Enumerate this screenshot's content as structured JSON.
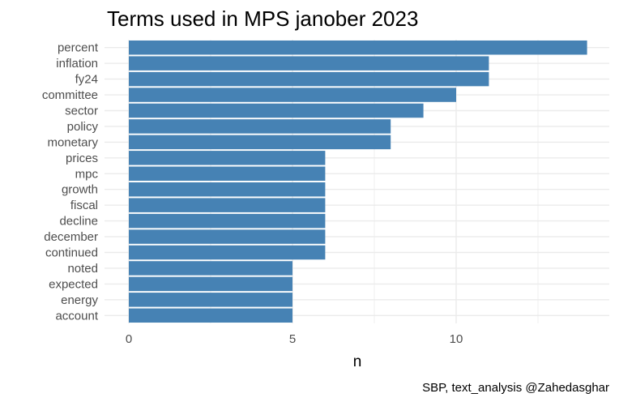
{
  "chart_data": {
    "type": "bar",
    "orientation": "horizontal",
    "title": "Terms used in MPS janober 2023",
    "xlabel": "n",
    "ylabel": "",
    "caption": "SBP, text_analysis @Zahedasghar",
    "categories": [
      "percent",
      "inflation",
      "fy24",
      "committee",
      "sector",
      "policy",
      "monetary",
      "prices",
      "mpc",
      "growth",
      "fiscal",
      "decline",
      "december",
      "continued",
      "noted",
      "expected",
      "energy",
      "account"
    ],
    "values": [
      14,
      11,
      11,
      10,
      9,
      8,
      8,
      6,
      6,
      6,
      6,
      6,
      6,
      6,
      5,
      5,
      5,
      5
    ],
    "xlim": [
      0,
      14.7
    ],
    "xticks": [
      0,
      5,
      10
    ],
    "grid": true,
    "legend": "none",
    "bar_color": "#4682b4",
    "grid_color": "#ebebeb"
  }
}
